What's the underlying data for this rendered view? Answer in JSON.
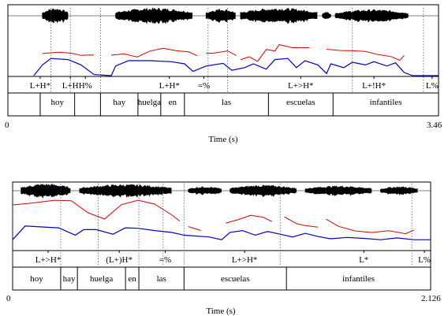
{
  "panels": [
    {
      "duration_label": "3.46",
      "start_label": "0",
      "axis_label": "Time (s)",
      "tones": [
        {
          "text": "L+H*",
          "t": 0.075
        },
        {
          "text": "L+H",
          "t": 0.145
        },
        {
          "text": "H%",
          "t": 0.18
        },
        {
          "text": "L+H*",
          "t": 0.375
        },
        {
          "text": "=%",
          "t": 0.455
        },
        {
          "text": "L+>H*",
          "t": 0.68
        },
        {
          "text": "L+!H*",
          "t": 0.85
        },
        {
          "text": "L%",
          "t": 0.985
        }
      ],
      "tone_bounds": [
        0.1,
        0.145,
        0.215,
        0.465,
        0.51,
        0.8,
        0.965
      ],
      "words": [
        "hoy",
        "hay",
        "huelga",
        "en",
        "las",
        "escuelas",
        "infantiles"
      ],
      "word_bounds": [
        0.0,
        0.075,
        0.155,
        0.215,
        0.302,
        0.355,
        0.41,
        0.605,
        0.755,
        1.0
      ],
      "word_slots": [
        1,
        3,
        4,
        5,
        6,
        7,
        8
      ]
    },
    {
      "duration_label": "2.126",
      "start_label": "0",
      "axis_label": "Time (s)",
      "tones": [
        {
          "text": "L+>H*",
          "t": 0.085
        },
        {
          "text": "(L+)H*",
          "t": 0.255
        },
        {
          "text": "=%",
          "t": 0.365
        },
        {
          "text": "L+>H*",
          "t": 0.555
        },
        {
          "text": "L*",
          "t": 0.84
        },
        {
          "text": "L%",
          "t": 0.985
        }
      ],
      "tone_bounds": [
        0.0,
        0.115,
        0.205,
        0.302,
        0.36,
        0.41,
        0.64,
        0.955
      ],
      "words": [
        "hoy",
        "hay",
        "huelga",
        "en",
        "las",
        "escuelas",
        "infantiles"
      ],
      "word_bounds": [
        0.0,
        0.0,
        0.115,
        0.155,
        0.27,
        0.302,
        0.41,
        0.655,
        1.0
      ],
      "word_slots": [
        1,
        2,
        3,
        4,
        5,
        6,
        7
      ]
    }
  ],
  "colors": {
    "waveform": "#000000",
    "f0_red": "#dd0000",
    "intensity_blue": "#0000cc",
    "frame": "#000000"
  }
}
